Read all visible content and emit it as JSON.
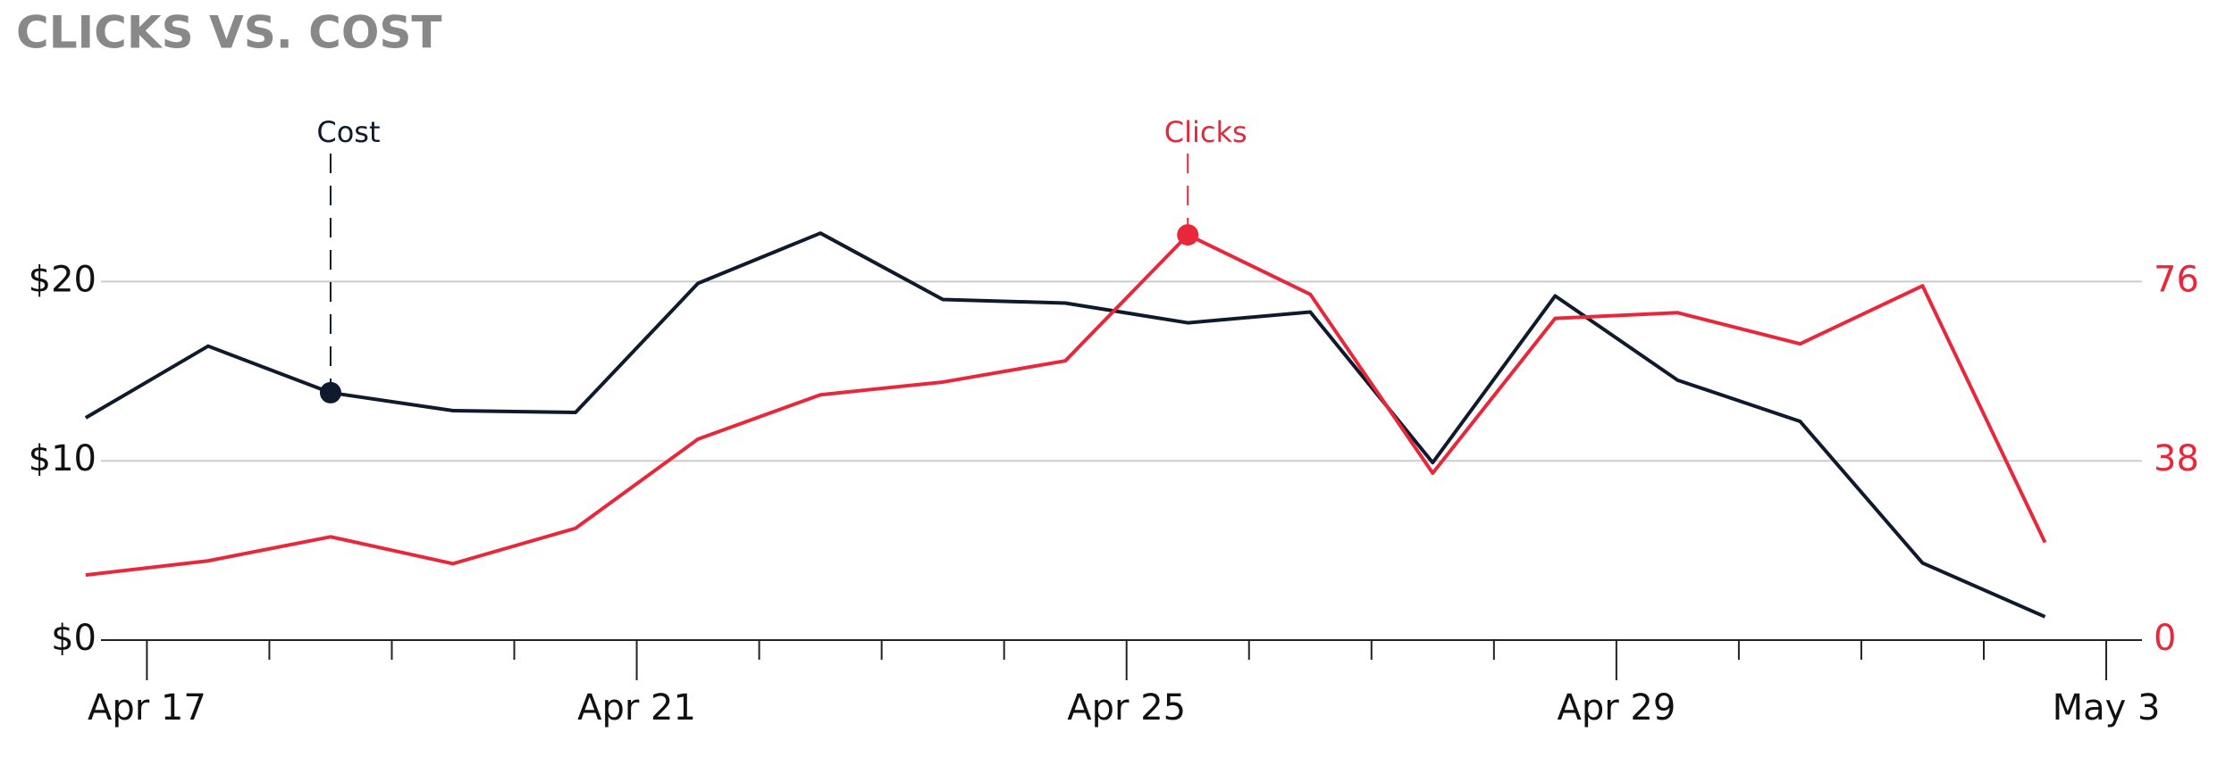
{
  "chart_data": {
    "type": "line",
    "title": "CLICKS VS. COST",
    "x": [
      "Apr 16 12:00",
      "Apr 17 12:00",
      "Apr 18 12:00",
      "Apr 19 12:00",
      "Apr 20 12:00",
      "Apr 21 12:00",
      "Apr 22 12:00",
      "Apr 23 12:00",
      "Apr 24 12:00",
      "Apr 25 12:00",
      "Apr 26 12:00",
      "Apr 27 12:00",
      "Apr 28 12:00",
      "Apr 29 12:00",
      "Apr 30 12:00",
      "May 1 12:00",
      "May 2 12:00"
    ],
    "series": [
      {
        "name": "Cost",
        "color": "#0f1b2d",
        "axis": "y",
        "values": [
          12.4,
          16.4,
          13.8,
          12.8,
          12.7,
          19.9,
          22.7,
          19.0,
          18.8,
          17.7,
          18.3,
          9.9,
          19.2,
          14.5,
          12.2,
          4.3,
          1.3
        ]
      },
      {
        "name": "Clicks",
        "color": "#e8283a",
        "axis": "y2",
        "values": [
          13.8,
          16.8,
          21.9,
          16.2,
          23.7,
          42.6,
          52.0,
          54.7,
          59.2,
          85.9,
          73.3,
          35.4,
          68.2,
          69.4,
          62.8,
          75.1,
          20.7
        ]
      }
    ],
    "annotations": [
      {
        "series": 0,
        "point": 2
      },
      {
        "series": 1,
        "point": 9
      }
    ],
    "xlim": [
      "Apr 16 15:00",
      "May 3 07:00"
    ],
    "xticks": [
      "Apr 17",
      "Apr 21",
      "Apr 25",
      "Apr 29",
      "May 3"
    ],
    "xminor": [
      "Apr 18",
      "Apr 19",
      "Apr 20",
      "Apr 22",
      "Apr 23",
      "Apr 24",
      "Apr 26",
      "Apr 27",
      "Apr 28",
      "Apr 30",
      "May 1",
      "May 2"
    ],
    "ylim": [
      0,
      25
    ],
    "yticks": [
      {
        "value": 0,
        "label": "$0"
      },
      {
        "value": 10,
        "label": "$10"
      },
      {
        "value": 20,
        "label": "$20"
      }
    ],
    "y2lim": [
      0,
      95
    ],
    "y2ticks": [
      0,
      38,
      76
    ],
    "grid": true
  }
}
